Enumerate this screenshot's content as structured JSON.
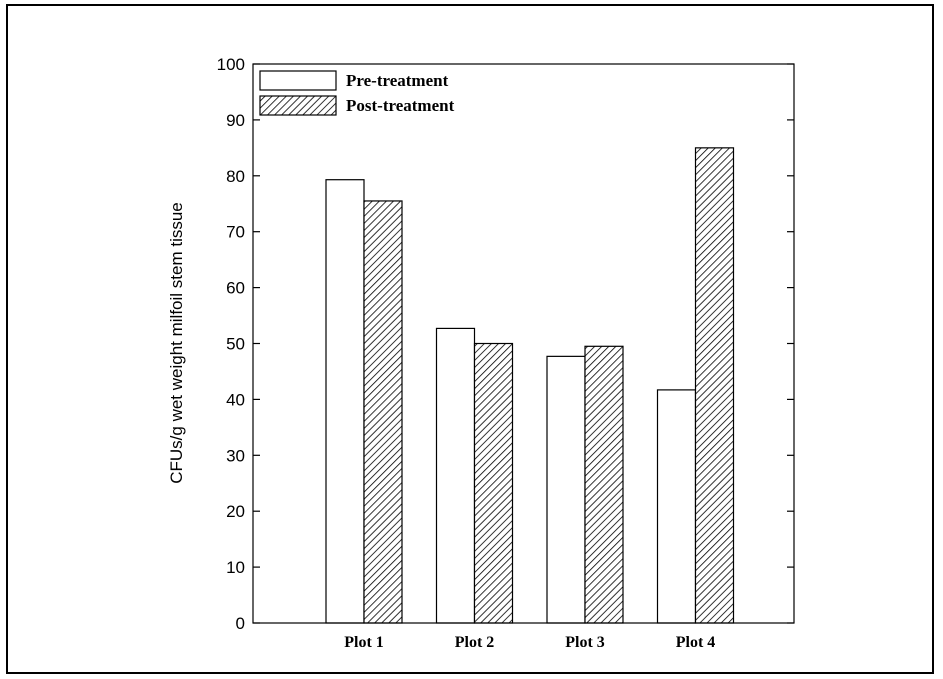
{
  "chart_data": {
    "type": "bar",
    "categories": [
      "Plot 1",
      "Plot 2",
      "Plot 3",
      "Plot 4"
    ],
    "series": [
      {
        "name": "Pre-treatment",
        "values": [
          79.3,
          52.7,
          47.7,
          41.7
        ],
        "pattern": "none",
        "color": "#ffffff"
      },
      {
        "name": "Post-treatment",
        "values": [
          75.5,
          50.0,
          49.5,
          85.0
        ],
        "pattern": "diagonal-hatch",
        "color": "#000000"
      }
    ],
    "ylabel": "CFUs/g wet weight milfoil stem tissue",
    "xlabel": "",
    "ylim": [
      0,
      100
    ],
    "yticks": [
      0,
      10,
      20,
      30,
      40,
      50,
      60,
      70,
      80,
      90,
      100
    ],
    "legend_position": "top-left",
    "grid": false
  }
}
